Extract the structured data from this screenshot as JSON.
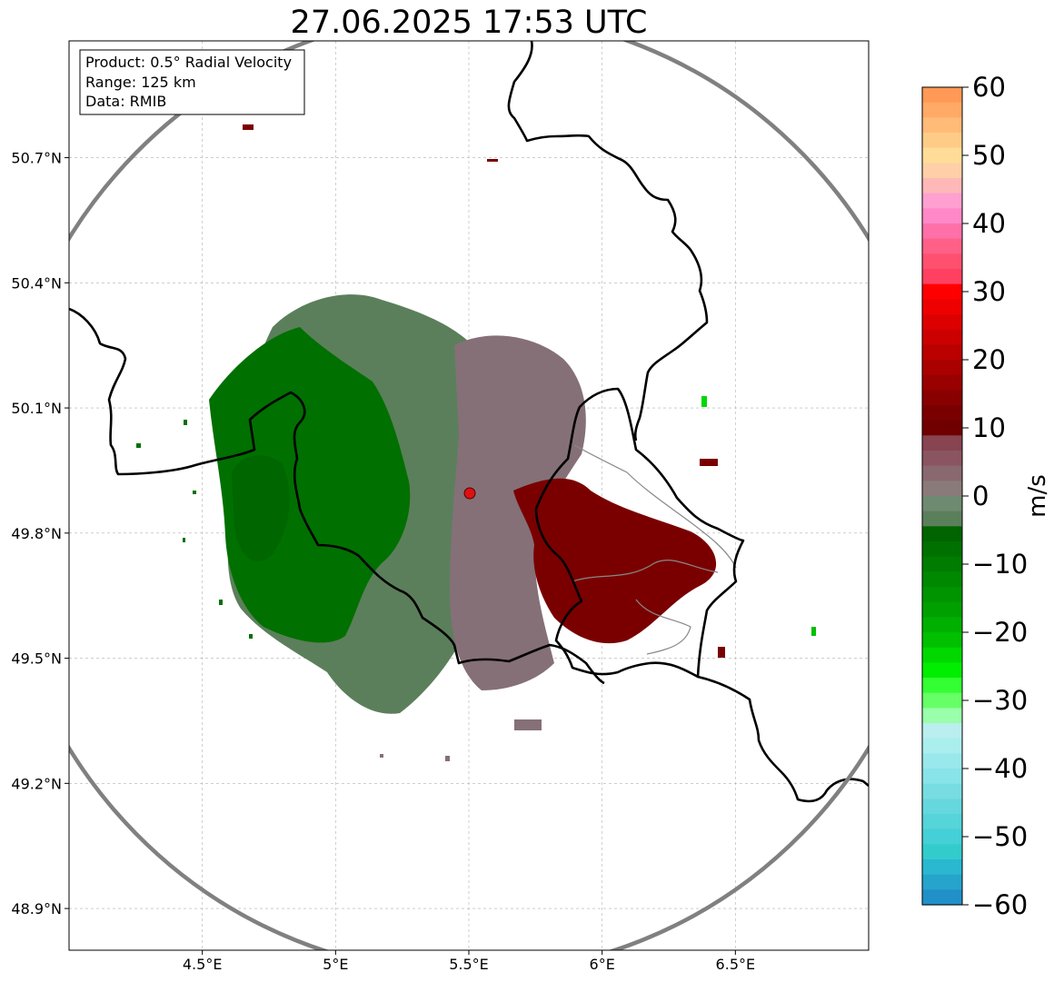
{
  "title": "27.06.2025 17:53 UTC",
  "info_box": {
    "product": "Product: 0.5° Radial Velocity",
    "range": "Range: 125 km",
    "data": "Data: RMIB"
  },
  "map": {
    "lon_range": [
      4.0,
      7.0
    ],
    "lat_range": [
      48.8,
      50.98
    ],
    "radar_site": {
      "lon": 5.505,
      "lat": 49.915
    },
    "range_ring_km": 125,
    "x_ticks": [
      {
        "value": 4.5,
        "label": "4.5°E"
      },
      {
        "value": 5.0,
        "label": "5°E"
      },
      {
        "value": 5.5,
        "label": "5.5°E"
      },
      {
        "value": 6.0,
        "label": "6°E"
      },
      {
        "value": 6.5,
        "label": "6.5°E"
      }
    ],
    "y_ticks": [
      {
        "value": 50.7,
        "label": "50.7°N"
      },
      {
        "value": 50.4,
        "label": "50.4°N"
      },
      {
        "value": 50.1,
        "label": "50.1°N"
      },
      {
        "value": 49.8,
        "label": "49.8°N"
      },
      {
        "value": 49.5,
        "label": "49.5°N"
      },
      {
        "value": 49.2,
        "label": "49.2°N"
      },
      {
        "value": 48.9,
        "label": "48.9°N"
      }
    ],
    "grid": true,
    "colors": {
      "ring": "#808080",
      "border": "#000000",
      "province_border": "#888888",
      "radar_marker": "#dd1111",
      "inbound_strong": "#007000",
      "inbound_weak": "#5b7f5b",
      "near_zero": "#857078",
      "outbound": "#7a0000"
    }
  },
  "colorbar": {
    "label": "m/s",
    "min": -60,
    "max": 60,
    "tick_labels": [
      "60",
      "50",
      "40",
      "30",
      "20",
      "10",
      "0",
      "−10",
      "−20",
      "−30",
      "−40",
      "−50",
      "−60"
    ],
    "colors": [
      "#ff9955",
      "#ffaa66",
      "#ffbb77",
      "#ffcc88",
      "#ffdd99",
      "#ffd0a8",
      "#ffb8b8",
      "#ffa0d0",
      "#ff88c8",
      "#ff70a8",
      "#ff6088",
      "#ff5070",
      "#ff4060",
      "#ff0000",
      "#ee0000",
      "#dd0000",
      "#cc0000",
      "#bb0000",
      "#aa0000",
      "#990000",
      "#880000",
      "#7a0000",
      "#700000",
      "#884450",
      "#8a5560",
      "#8a6870",
      "#8a7a7a",
      "#6e8a70",
      "#5b7f5b",
      "#006400",
      "#007000",
      "#007c00",
      "#008800",
      "#009400",
      "#00a000",
      "#00b000",
      "#00c000",
      "#00d800",
      "#00ee00",
      "#33ff33",
      "#66ff66",
      "#99ffaa",
      "#bbeeee",
      "#aaeeee",
      "#99e8ec",
      "#88e4e8",
      "#77dde2",
      "#66d8dd",
      "#55d4da",
      "#44d0d6",
      "#33cccc",
      "#2ab8d0",
      "#26a4cc",
      "#2290c8"
    ]
  }
}
